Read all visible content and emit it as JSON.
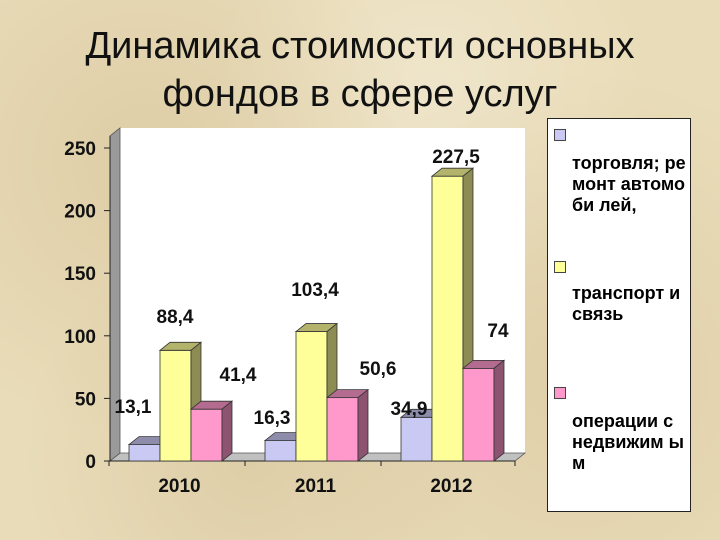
{
  "title": {
    "line1": "Динамика стоимости основных",
    "line2": "фондов в сфере услуг"
  },
  "chart_data": {
    "type": "bar",
    "categories": [
      "2010",
      "2011",
      "2012"
    ],
    "series": [
      {
        "name": "торговля; ремонт автомоби лей,",
        "values": [
          13.1,
          16.3,
          34.9
        ],
        "labels": [
          "13,1",
          "16,3",
          "34,9"
        ],
        "color": "#c9c9f4"
      },
      {
        "name": "транспорт и связь",
        "values": [
          88.4,
          103.4,
          227.5
        ],
        "labels": [
          "88,4",
          "103,4",
          "227,5"
        ],
        "color": "#ffff99"
      },
      {
        "name": "операции с недвижим ым",
        "values": [
          41.4,
          50.6,
          74
        ],
        "labels": [
          "41,4",
          "50,6",
          "74"
        ],
        "color": "#ff99cc"
      }
    ],
    "yticks": [
      "0",
      "50",
      "100",
      "150",
      "200",
      "250"
    ],
    "ylim": [
      0,
      250
    ],
    "style": "3d-column",
    "legend": "right"
  },
  "legend": {
    "items": [
      {
        "label": "торговля; ремонт автомоби лей,",
        "color": "#c9c9f4"
      },
      {
        "label": "транспорт и связь",
        "color": "#ffff99"
      },
      {
        "label": "операции с недвижим ым",
        "color": "#ff99cc"
      }
    ]
  }
}
